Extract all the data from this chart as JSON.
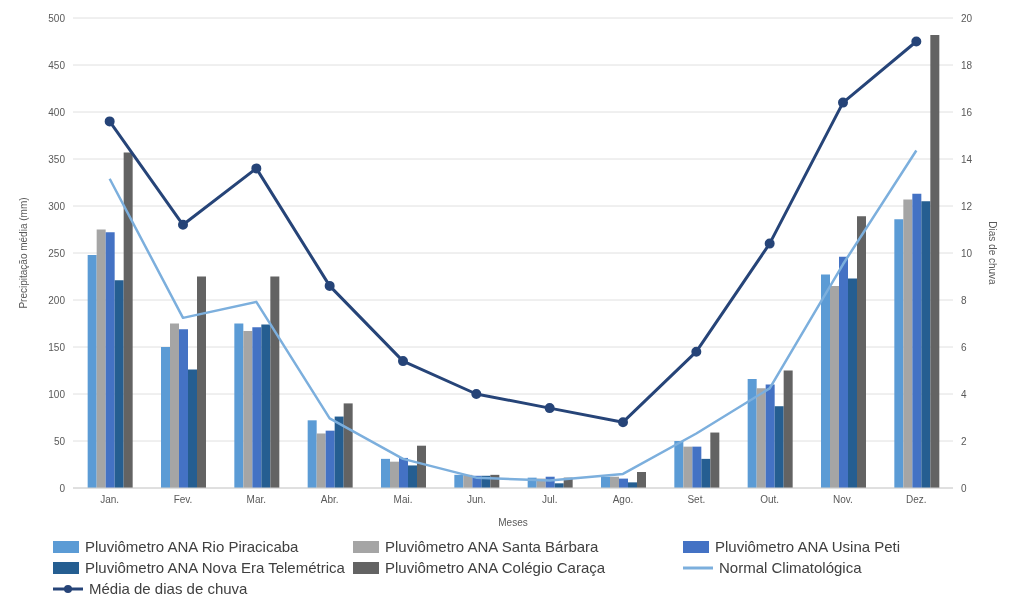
{
  "chart_data": {
    "type": "bar",
    "xlabel": "Meses",
    "ylabel": "Precipitação média (mm)",
    "y2label": "Dias de chuva",
    "categories": [
      "Jan.",
      "Fev.",
      "Mar.",
      "Abr.",
      "Mai.",
      "Jun.",
      "Jul.",
      "Ago.",
      "Set.",
      "Out.",
      "Nov.",
      "Dez."
    ],
    "series": [
      {
        "name": "Pluviômetro ANA Rio Piracicaba",
        "color": "#5b9bd5",
        "values": [
          248,
          150,
          175,
          72,
          31,
          14,
          11,
          12,
          50,
          116,
          227,
          286
        ]
      },
      {
        "name": "Pluviômetro ANA Santa Bárbara",
        "color": "#a5a5a5",
        "values": [
          275,
          175,
          167,
          58,
          28,
          14,
          10,
          12,
          44,
          106,
          215,
          307
        ]
      },
      {
        "name": "Pluviômetro ANA Usina Peti",
        "color": "#4472c4",
        "values": [
          272,
          169,
          171,
          61,
          32,
          13,
          12,
          10,
          44,
          110,
          246,
          313
        ]
      },
      {
        "name": "Pluviômetro ANA Nova Era Telemétrica",
        "color": "#255e91",
        "values": [
          221,
          126,
          174,
          76,
          24,
          13,
          5,
          6,
          31,
          87,
          223,
          305
        ]
      },
      {
        "name": "Pluviômetro ANA Colégio Caraça",
        "color": "#636363",
        "values": [
          357,
          225,
          225,
          90,
          45,
          14,
          11,
          17,
          59,
          125,
          289,
          482
        ]
      },
      {
        "name": "Normal Climatológica",
        "type": "line",
        "marker": "none",
        "color": "#7cafdd",
        "values": [
          329,
          181,
          198,
          74,
          31,
          11,
          8,
          15,
          58,
          106,
          238,
          359
        ]
      },
      {
        "name": "Média de dias de chuva",
        "type": "line",
        "marker": "circle",
        "axis": "y2",
        "color": "#264478",
        "values": [
          15.6,
          11.2,
          13.6,
          8.6,
          5.4,
          4.0,
          3.4,
          2.8,
          5.8,
          10.4,
          16.4,
          19.0
        ]
      }
    ],
    "ylim": [
      0,
      500
    ],
    "yticks": [
      0,
      50,
      100,
      150,
      200,
      250,
      300,
      350,
      400,
      450,
      500
    ],
    "y2lim": [
      0,
      20
    ],
    "y2ticks": [
      0,
      2,
      4,
      6,
      8,
      10,
      12,
      14,
      16,
      18,
      20
    ],
    "grid": "y",
    "legend": "bottom"
  }
}
